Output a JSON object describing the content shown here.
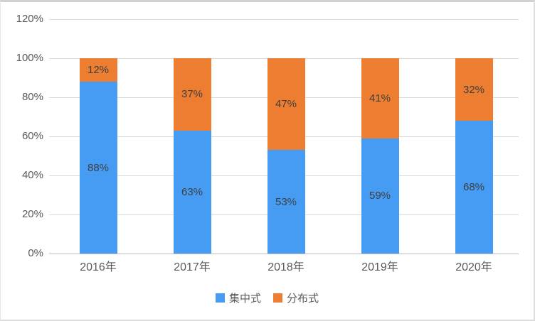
{
  "frame": {
    "background": "#FFFFFF",
    "border_color": "#D9D9D9"
  },
  "styles": {
    "gridline_color": "#D9D9D9",
    "axis_line_color": "#BFBFBF",
    "axis_text_color": "#595959",
    "data_label_color": "#404040"
  },
  "chart_data": {
    "type": "bar",
    "stacked": true,
    "title": "",
    "xlabel": "",
    "ylabel": "",
    "grid": true,
    "legend_position": "bottom",
    "categories": [
      "2016年",
      "2017年",
      "2018年",
      "2019年",
      "2020年"
    ],
    "series": [
      {
        "key": "centralized",
        "name": "集中式",
        "color": "#469CF2",
        "values": [
          88,
          63,
          53,
          59,
          68
        ],
        "labels": [
          "88%",
          "63%",
          "53%",
          "59%",
          "68%"
        ]
      },
      {
        "key": "distributed",
        "name": "分布式",
        "color": "#EC7D31",
        "values": [
          12,
          37,
          47,
          41,
          32
        ],
        "labels": [
          "12%",
          "37%",
          "47%",
          "41%",
          "32%"
        ]
      }
    ],
    "ylim": [
      0,
      120
    ],
    "ytick_step": 20,
    "ytick_labels": [
      "0%",
      "20%",
      "40%",
      "60%",
      "80%",
      "100%",
      "120%"
    ]
  }
}
